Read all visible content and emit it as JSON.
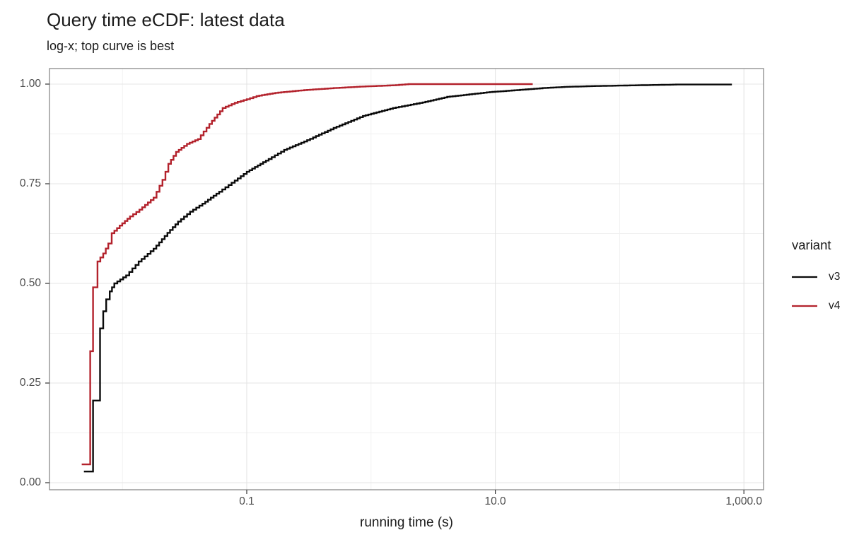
{
  "chart_data": {
    "type": "line",
    "subtype": "ecdf_step",
    "title": "Query time eCDF: latest data",
    "subtitle": "log-x; top curve is best",
    "xlabel": "running time (s)",
    "ylabel": "",
    "x_scale": "log10",
    "xlim": [
      0.0026,
      1400
    ],
    "ylim": [
      0,
      1
    ],
    "grid": "on",
    "legend_title": "variant",
    "legend_position": "right",
    "x_ticks": [
      {
        "value": 0.1,
        "label": "0.1"
      },
      {
        "value": 10,
        "label": "10.0"
      },
      {
        "value": 1000,
        "label": "1,000.0"
      }
    ],
    "x_minor": [
      0.01,
      1,
      100
    ],
    "y_ticks": [
      {
        "value": 0.0,
        "label": "0.00"
      },
      {
        "value": 0.25,
        "label": "0.25"
      },
      {
        "value": 0.5,
        "label": "0.50"
      },
      {
        "value": 0.75,
        "label": "0.75"
      },
      {
        "value": 1.0,
        "label": "1.00"
      }
    ],
    "y_minor": [
      0.125,
      0.375,
      0.625,
      0.875
    ],
    "series": [
      {
        "name": "v3",
        "color": "#0a0a0a",
        "points": [
          [
            0.0049,
            0.028
          ],
          [
            0.0058,
            0.028
          ],
          [
            0.0058,
            0.206
          ],
          [
            0.0066,
            0.206
          ],
          [
            0.0066,
            0.387
          ],
          [
            0.007,
            0.43
          ],
          [
            0.0074,
            0.46
          ],
          [
            0.0079,
            0.48
          ],
          [
            0.0086,
            0.5
          ],
          [
            0.0107,
            0.52
          ],
          [
            0.0135,
            0.555
          ],
          [
            0.0178,
            0.587
          ],
          [
            0.023,
            0.627
          ],
          [
            0.028,
            0.655
          ],
          [
            0.035,
            0.68
          ],
          [
            0.044,
            0.7
          ],
          [
            0.06,
            0.73
          ],
          [
            0.08,
            0.758
          ],
          [
            0.1,
            0.78
          ],
          [
            0.15,
            0.812
          ],
          [
            0.2,
            0.835
          ],
          [
            0.29,
            0.856
          ],
          [
            0.5,
            0.89
          ],
          [
            0.86,
            0.92
          ],
          [
            1.5,
            0.94
          ],
          [
            2.6,
            0.954
          ],
          [
            4.1,
            0.968
          ],
          [
            6.5,
            0.975
          ],
          [
            9.0,
            0.98
          ],
          [
            15,
            0.985
          ],
          [
            24,
            0.99
          ],
          [
            36,
            0.993
          ],
          [
            60,
            0.995
          ],
          [
            135,
            0.997
          ],
          [
            300,
            0.999
          ],
          [
            700,
            1.0
          ],
          [
            800,
            1.0
          ]
        ]
      },
      {
        "name": "v4",
        "color": "#b3222c",
        "points": [
          [
            0.0047,
            0.046
          ],
          [
            0.0055,
            0.046
          ],
          [
            0.0055,
            0.33
          ],
          [
            0.0058,
            0.33
          ],
          [
            0.0058,
            0.49
          ],
          [
            0.0063,
            0.49
          ],
          [
            0.0063,
            0.555
          ],
          [
            0.007,
            0.575
          ],
          [
            0.0077,
            0.6
          ],
          [
            0.0082,
            0.626
          ],
          [
            0.0095,
            0.645
          ],
          [
            0.0115,
            0.668
          ],
          [
            0.0137,
            0.685
          ],
          [
            0.0178,
            0.715
          ],
          [
            0.021,
            0.76
          ],
          [
            0.0234,
            0.8
          ],
          [
            0.027,
            0.83
          ],
          [
            0.033,
            0.85
          ],
          [
            0.0405,
            0.862
          ],
          [
            0.05,
            0.9
          ],
          [
            0.064,
            0.94
          ],
          [
            0.08,
            0.953
          ],
          [
            0.1,
            0.962
          ],
          [
            0.12,
            0.97
          ],
          [
            0.17,
            0.978
          ],
          [
            0.29,
            0.985
          ],
          [
            0.5,
            0.99
          ],
          [
            0.86,
            0.994
          ],
          [
            1.5,
            0.997
          ],
          [
            2.0,
            1.0
          ],
          [
            20,
            1.0
          ]
        ]
      }
    ]
  },
  "colors": {
    "panel_border": "#8a8a8a",
    "grid_major": "#e4e4e4",
    "grid_minor": "#f0f0f0",
    "tick_mark": "#333333",
    "axis_text": "#4d4d4d",
    "text": "#1b1b1b",
    "background": "#ffffff"
  }
}
